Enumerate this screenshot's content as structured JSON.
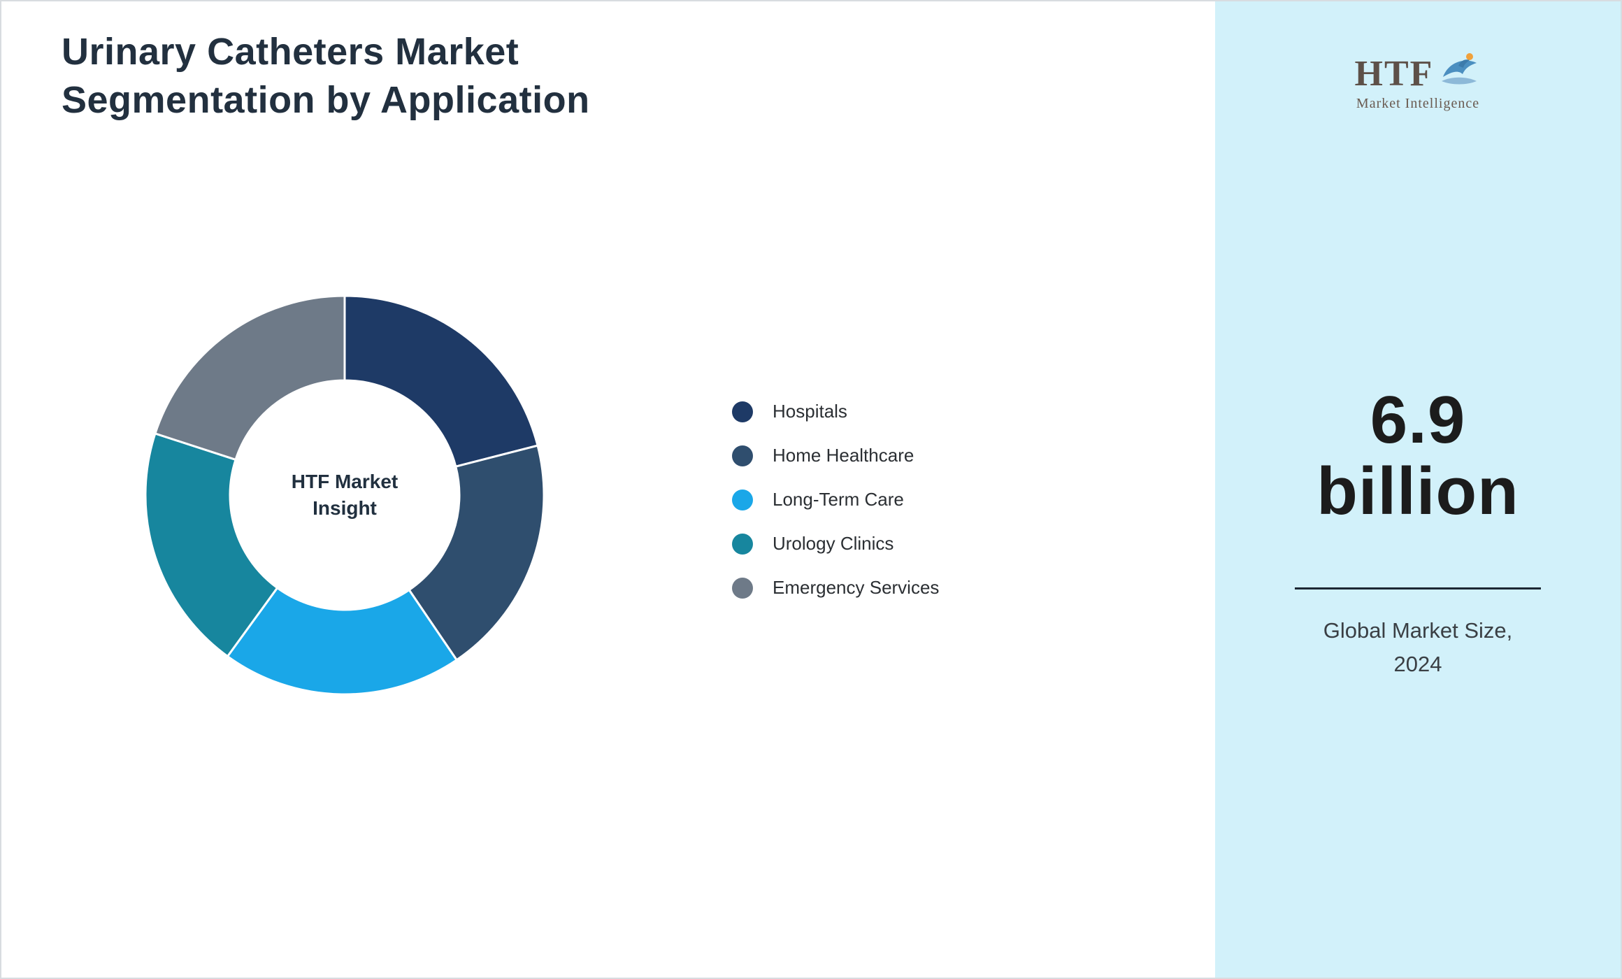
{
  "page": {
    "title_line1": "Urinary Catheters Market",
    "title_line2": "Segmentation by Application"
  },
  "chart_data": {
    "type": "pie",
    "subtype": "donut",
    "title": "Urinary Catheters Market Segmentation by Application",
    "center_label": "HTF Market Insight",
    "legend_position": "right",
    "start_angle_deg": 0,
    "direction": "clockwise",
    "value_labels_shown": false,
    "values_are_estimated_percent_share": true,
    "segments": [
      {
        "label": "Hospitals",
        "value": 21,
        "color": "#1e3a66"
      },
      {
        "label": "Home Healthcare",
        "value": 19.5,
        "color": "#2f4e6e"
      },
      {
        "label": "Long-Term Care",
        "value": 19.5,
        "color": "#1aa7e8"
      },
      {
        "label": "Urology Clinics",
        "value": 20,
        "color": "#17869e"
      },
      {
        "label": "Emergency Services",
        "value": 20,
        "color": "#6e7a88"
      }
    ]
  },
  "side_panel": {
    "background_color": "#d2f1fa",
    "logo_text": "HTF",
    "logo_subtext": "Market Intelligence",
    "stat_line1": "6.9",
    "stat_line2": "billion",
    "caption_line1": "Global Market Size,",
    "caption_line2": "2024"
  }
}
